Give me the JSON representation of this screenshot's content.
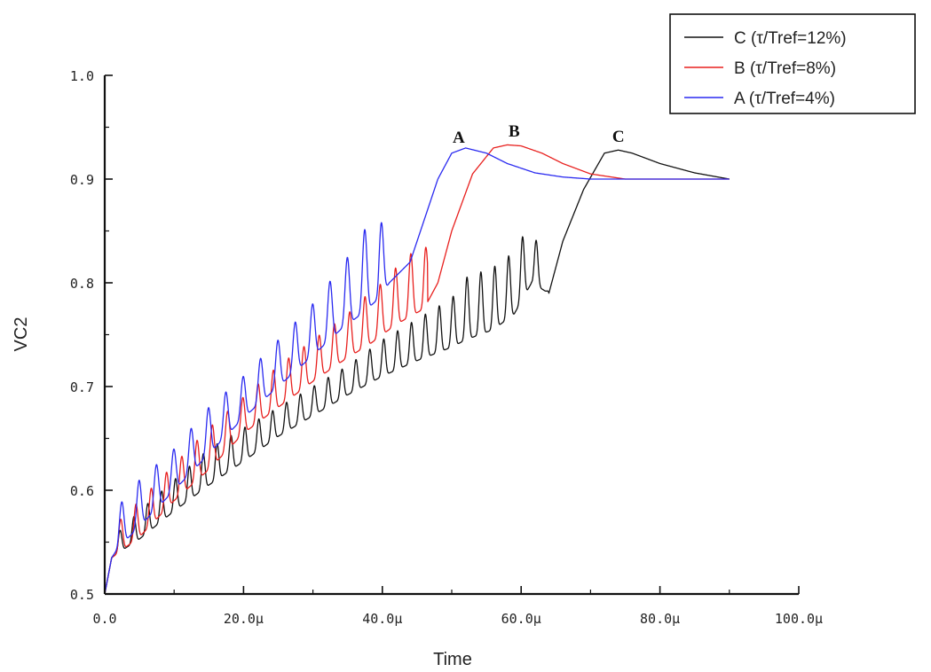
{
  "chart_data": {
    "type": "line",
    "xlabel": "Time",
    "ylabel": "VC2",
    "xlim": [
      0,
      100
    ],
    "ylim": [
      0.5,
      1.0
    ],
    "x_ticks": [
      0,
      20,
      40,
      60,
      80,
      100
    ],
    "x_tick_labels": [
      "0.0",
      "20.0µ",
      "40.0µ",
      "60.0µ",
      "80.0µ",
      "100.0µ"
    ],
    "y_ticks": [
      0.5,
      0.6,
      0.7,
      0.8,
      0.9,
      1.0
    ],
    "y_tick_labels": [
      "0.5",
      "0.6",
      "0.7",
      "0.8",
      "0.9",
      "1.0"
    ],
    "legend_position": "top-right",
    "series": [
      {
        "name": "C (τ/Tref=12%)",
        "color": "#111111",
        "x": [
          0,
          1.0,
          2.0,
          5,
          10,
          15,
          20,
          25,
          30,
          35,
          40,
          45,
          50,
          52,
          56,
          59,
          61.5,
          64,
          66,
          69,
          72,
          74,
          76,
          80,
          85,
          90
        ],
        "trough": [
          0.5,
          0.535,
          0.54,
          0.553,
          0.58,
          0.605,
          0.628,
          0.652,
          0.672,
          0.692,
          0.71,
          0.725,
          0.738,
          0.745,
          0.755,
          0.77,
          0.8,
          0.79,
          0.84,
          0.89,
          0.925,
          0.928,
          0.925,
          0.915,
          0.906,
          0.9
        ],
        "peak": [
          0.5,
          0.535,
          0.56,
          0.58,
          0.61,
          0.64,
          0.66,
          0.68,
          0.7,
          0.72,
          0.745,
          0.765,
          0.785,
          0.805,
          0.815,
          0.83,
          0.86,
          0.79,
          0.84,
          0.89,
          0.925,
          0.928,
          0.925,
          0.915,
          0.906,
          0.9
        ],
        "osc_start": 1.2,
        "osc_end": 64.3,
        "osc_period": 2.0
      },
      {
        "name": "B (τ/Tref=8%)",
        "color": "#e8201e",
        "x": [
          0,
          1.0,
          2.0,
          5,
          10,
          15,
          20,
          25,
          30,
          35,
          38,
          40,
          42,
          46,
          48,
          50,
          53,
          56,
          58,
          60,
          63,
          66,
          70,
          75,
          80,
          90
        ],
        "trough": [
          0.5,
          0.535,
          0.54,
          0.555,
          0.59,
          0.62,
          0.655,
          0.68,
          0.705,
          0.728,
          0.74,
          0.75,
          0.76,
          0.775,
          0.8,
          0.85,
          0.905,
          0.93,
          0.933,
          0.932,
          0.925,
          0.915,
          0.905,
          0.9,
          0.9,
          0.9
        ],
        "peak": [
          0.5,
          0.535,
          0.57,
          0.59,
          0.625,
          0.66,
          0.69,
          0.72,
          0.745,
          0.77,
          0.79,
          0.8,
          0.815,
          0.84,
          0.8,
          0.85,
          0.905,
          0.93,
          0.933,
          0.932,
          0.925,
          0.915,
          0.905,
          0.9,
          0.9,
          0.9
        ],
        "osc_start": 1.2,
        "osc_end": 46.5,
        "osc_period": 2.2
      },
      {
        "name": "A (τ/Tref=4%)",
        "color": "#2a2af0",
        "x": [
          0,
          1.0,
          2.0,
          5,
          10,
          15,
          20,
          25,
          30,
          34,
          37,
          39.5,
          41,
          44,
          46,
          48,
          50,
          52,
          55,
          58,
          62,
          66,
          70,
          75,
          80,
          90
        ],
        "trough": [
          0.5,
          0.535,
          0.545,
          0.565,
          0.6,
          0.635,
          0.67,
          0.7,
          0.73,
          0.755,
          0.77,
          0.785,
          0.8,
          0.82,
          0.86,
          0.9,
          0.925,
          0.93,
          0.925,
          0.915,
          0.906,
          0.902,
          0.9,
          0.9,
          0.9,
          0.9
        ],
        "peak": [
          0.5,
          0.535,
          0.585,
          0.61,
          0.64,
          0.68,
          0.71,
          0.745,
          0.78,
          0.815,
          0.845,
          0.88,
          0.8,
          0.82,
          0.86,
          0.9,
          0.925,
          0.93,
          0.925,
          0.915,
          0.906,
          0.902,
          0.9,
          0.9,
          0.9,
          0.9
        ],
        "osc_start": 1.2,
        "osc_end": 41.3,
        "osc_period": 2.5
      }
    ],
    "annotations": [
      {
        "text": "A",
        "x": 51,
        "y": 0.935
      },
      {
        "text": "B",
        "x": 59,
        "y": 0.941
      },
      {
        "text": "C",
        "x": 74,
        "y": 0.936
      }
    ]
  }
}
